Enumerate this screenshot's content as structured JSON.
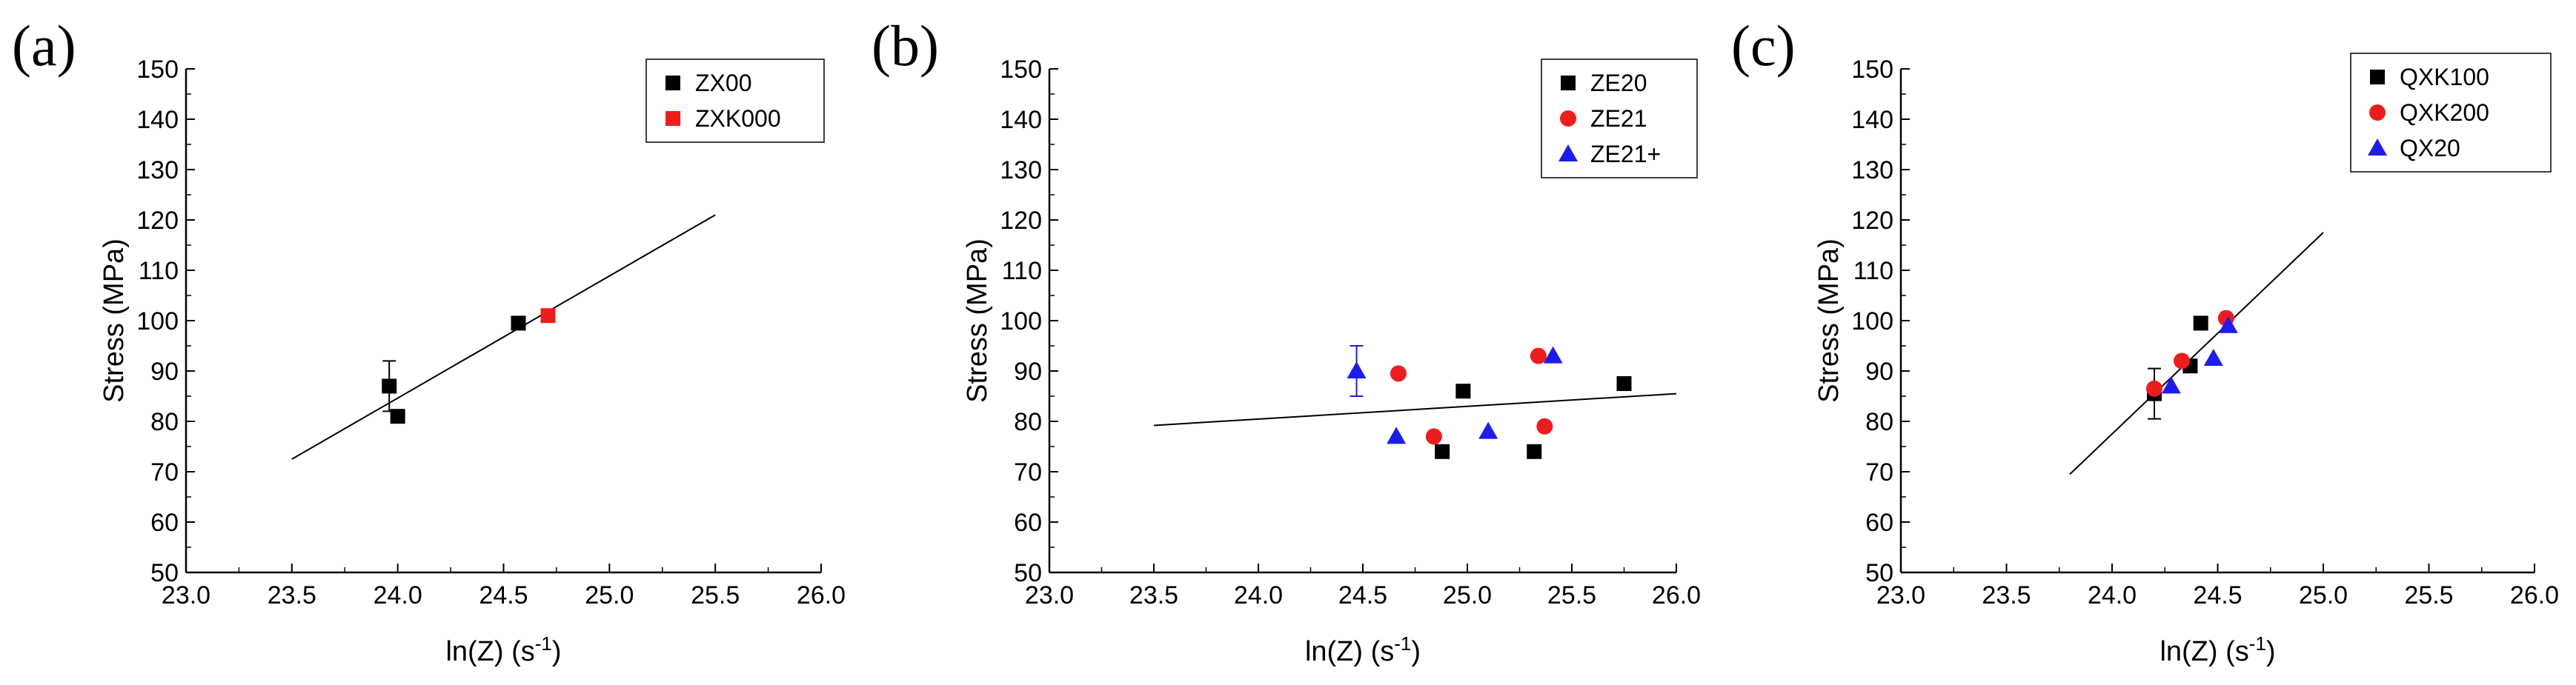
{
  "chart_data": [
    {
      "type": "scatter",
      "panel_label": "(a)",
      "xlabel_main": "ln(Z) (s",
      "xlabel_sup": "-1",
      "xlabel_end": ")",
      "ylabel": "Stress (MPa)",
      "xlim": [
        23.0,
        26.0
      ],
      "ylim": [
        50,
        150
      ],
      "xticks": [
        "23.0",
        "23.5",
        "24.0",
        "24.5",
        "25.0",
        "25.5",
        "26.0"
      ],
      "yticks": [
        "50",
        "60",
        "70",
        "80",
        "90",
        "100",
        "110",
        "120",
        "130",
        "140",
        "150"
      ],
      "grid": false,
      "legend_position": "top-right",
      "series": [
        {
          "name": "ZX00",
          "color": "#000000",
          "marker": "square",
          "points": [
            [
              23.96,
              87,
              5
            ],
            [
              24.0,
              81,
              null
            ],
            [
              24.57,
              99.5,
              null
            ]
          ]
        },
        {
          "name": "ZXK000",
          "color": "#ee1c1c",
          "marker": "square",
          "points": [
            [
              24.71,
              101,
              null
            ]
          ]
        }
      ],
      "fit_line": {
        "x": [
          23.5,
          25.5
        ],
        "y": [
          72.5,
          121
        ]
      }
    },
    {
      "type": "scatter",
      "panel_label": "(b)",
      "xlabel_main": "ln(Z) (s",
      "xlabel_sup": "-1",
      "xlabel_end": ")",
      "ylabel": "Stress (MPa)",
      "xlim": [
        23.0,
        26.0
      ],
      "ylim": [
        50,
        150
      ],
      "xticks": [
        "23.0",
        "23.5",
        "24.0",
        "24.5",
        "25.0",
        "25.5",
        "26.0"
      ],
      "yticks": [
        "50",
        "60",
        "70",
        "80",
        "90",
        "100",
        "110",
        "120",
        "130",
        "140",
        "150"
      ],
      "grid": false,
      "legend_position": "top-right",
      "series": [
        {
          "name": "ZE20",
          "color": "#000000",
          "marker": "square",
          "points": [
            [
              24.88,
              74,
              null
            ],
            [
              24.98,
              86,
              null
            ],
            [
              25.32,
              74,
              null
            ],
            [
              25.75,
              87.5,
              null
            ]
          ]
        },
        {
          "name": "ZE21",
          "color": "#ee1c1c",
          "marker": "circle",
          "points": [
            [
              24.67,
              89.5,
              null
            ],
            [
              24.84,
              77,
              null
            ],
            [
              25.34,
              93,
              null
            ],
            [
              25.37,
              79,
              null
            ]
          ]
        },
        {
          "name": "ZE21+",
          "color": "#1c1cee",
          "marker": "triangle",
          "points": [
            [
              24.47,
              90,
              5
            ],
            [
              24.66,
              77,
              null
            ],
            [
              25.1,
              78,
              null
            ],
            [
              25.41,
              93,
              null
            ]
          ]
        }
      ],
      "fit_line": {
        "x": [
          23.5,
          26.0
        ],
        "y": [
          79.2,
          85.5
        ]
      }
    },
    {
      "type": "scatter",
      "panel_label": "(c)",
      "xlabel_main": "ln(Z) (s",
      "xlabel_sup": "-1",
      "xlabel_end": ")",
      "ylabel": "Stress (MPa)",
      "xlim": [
        23.0,
        26.0
      ],
      "ylim": [
        50,
        150
      ],
      "xticks": [
        "23.0",
        "23.5",
        "24.0",
        "24.5",
        "25.0",
        "25.5",
        "26.0"
      ],
      "yticks": [
        "50",
        "60",
        "70",
        "80",
        "90",
        "100",
        "110",
        "120",
        "130",
        "140",
        "150"
      ],
      "grid": false,
      "legend_position": "top-right",
      "series": [
        {
          "name": "QXK100",
          "color": "#000000",
          "marker": "square",
          "points": [
            [
              24.2,
              85.5,
              5
            ],
            [
              24.37,
              91,
              null
            ],
            [
              24.42,
              99.5,
              null
            ]
          ]
        },
        {
          "name": "QXK200",
          "color": "#ee1c1c",
          "marker": "circle",
          "points": [
            [
              24.2,
              86.5,
              null
            ],
            [
              24.33,
              92,
              null
            ],
            [
              24.54,
              100.5,
              null
            ]
          ]
        },
        {
          "name": "QX20",
          "color": "#1c1cee",
          "marker": "triangle",
          "points": [
            [
              24.28,
              87,
              null
            ],
            [
              24.48,
              92.5,
              null
            ],
            [
              24.55,
              99,
              null
            ]
          ]
        }
      ],
      "fit_line": {
        "x": [
          23.8,
          25.0
        ],
        "y": [
          69.5,
          117.5
        ]
      }
    }
  ]
}
